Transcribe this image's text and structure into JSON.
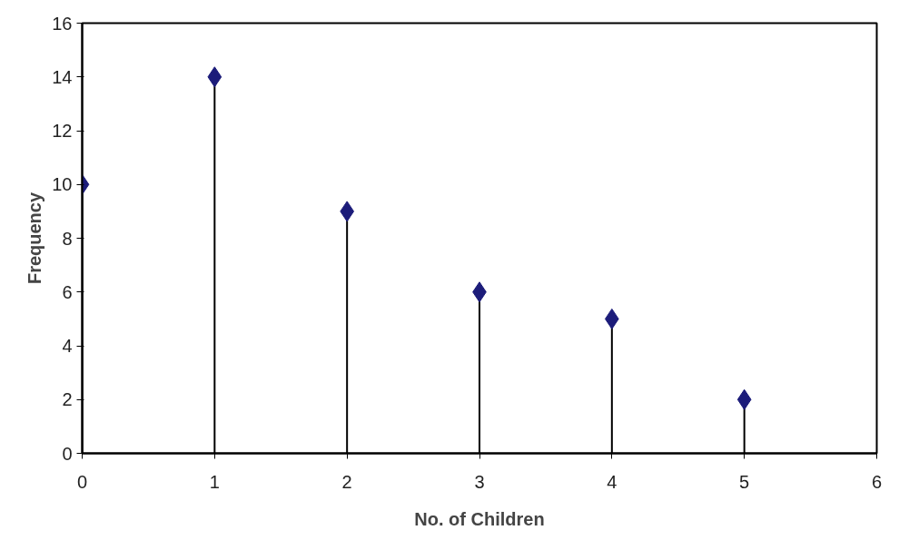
{
  "chart_data": {
    "type": "lollipop",
    "xlabel": "No. of Children",
    "ylabel": "Frequency",
    "x": [
      0,
      1,
      2,
      3,
      4,
      5
    ],
    "series": [
      {
        "color": "#1c1c7a",
        "values": [
          10,
          14,
          9,
          6,
          5,
          2
        ]
      }
    ],
    "xlim": [
      0,
      6
    ],
    "xticks": [
      0,
      1,
      2,
      3,
      4,
      5,
      6
    ],
    "ylim": [
      0,
      16
    ],
    "yticks": [
      0,
      2,
      4,
      6,
      8,
      10,
      12,
      14,
      16
    ],
    "marker": "diamond"
  }
}
